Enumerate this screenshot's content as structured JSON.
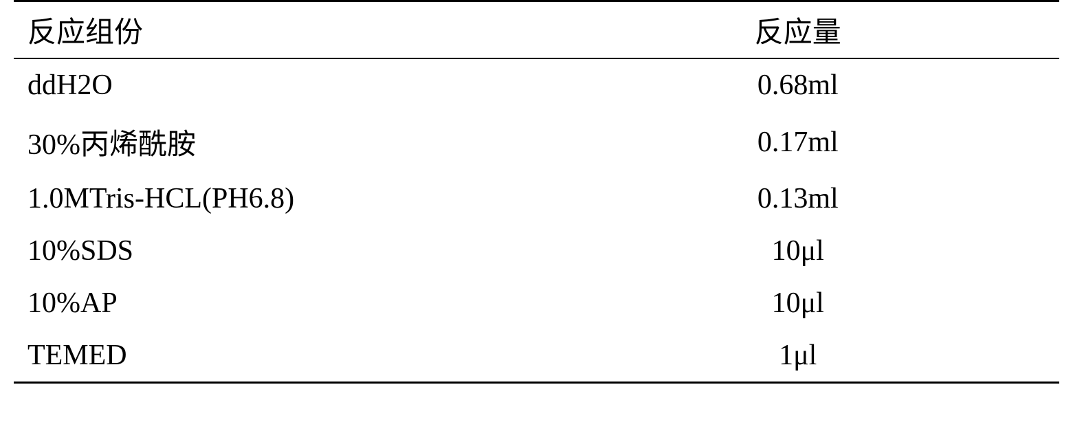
{
  "table": {
    "type": "table",
    "columns": [
      {
        "header": "反应组份",
        "align": "left"
      },
      {
        "header": "反应量",
        "align": "center"
      }
    ],
    "rows": [
      [
        "ddH2O",
        "0.68ml"
      ],
      [
        "30%丙烯酰胺",
        "0.17ml"
      ],
      [
        "1.0MTris-HCL(PH6.8)",
        "0.13ml"
      ],
      [
        "10%SDS",
        "10μl"
      ],
      [
        "10%AP",
        "10μl"
      ],
      [
        "TEMED",
        "1μl"
      ]
    ],
    "styling": {
      "background_color": "#ffffff",
      "text_color": "#000000",
      "border_color": "#000000",
      "font_size": 42,
      "top_border_width": 3,
      "header_bottom_border_width": 2,
      "bottom_border_width": 3,
      "font_family": "SimSun, Times New Roman, serif",
      "col1_width_pct": 50,
      "col2_width_pct": 50,
      "row_padding_v": 14
    }
  }
}
